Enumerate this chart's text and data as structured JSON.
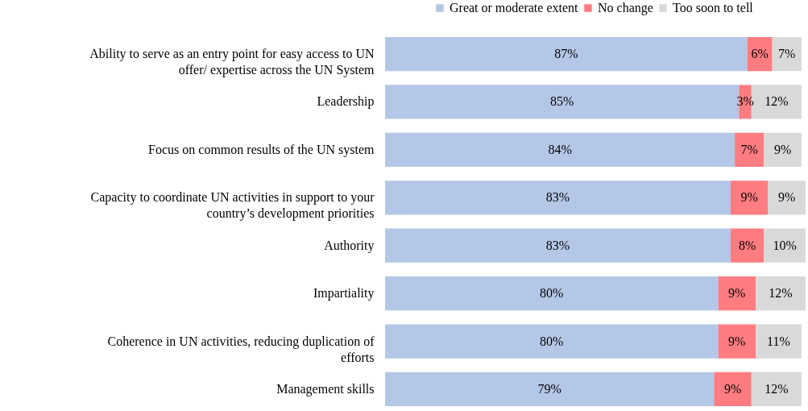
{
  "chart_data": {
    "type": "bar",
    "orientation": "horizontal",
    "stacked": true,
    "legend": "top right",
    "categories": [
      "Ability to serve as an entry point for easy access to UN offer/ expertise across the UN System",
      "Leadership",
      "Focus on common results of the UN system",
      "Capacity to coordinate UN activities  in support to your country’s development priorities",
      "Authority",
      "Impartiality",
      "Coherence in UN activities, reducing duplication of efforts",
      "Management skills"
    ],
    "series": [
      {
        "name": "Great or moderate extent",
        "color": "#b4c7e7",
        "values": [
          87,
          85,
          84,
          83,
          83,
          80,
          80,
          79
        ],
        "value_labels": [
          "87%",
          "85%",
          "84%",
          "83%",
          "83%",
          "80%",
          "80%",
          "79%"
        ]
      },
      {
        "name": "No change",
        "color": "#ff7c80",
        "values": [
          6,
          3,
          7,
          9,
          8,
          9,
          9,
          9
        ],
        "value_labels": [
          "6%",
          "3%",
          "7%",
          "9%",
          "8%",
          "9%",
          "9%",
          "9%"
        ]
      },
      {
        "name": "Too soon to tell",
        "color": "#d9d9d9",
        "values": [
          7,
          12,
          9,
          9,
          10,
          12,
          11,
          12
        ],
        "value_labels": [
          "7%",
          "12%",
          "9%",
          "9%",
          "10%",
          "12%",
          "11%",
          "12%"
        ]
      }
    ]
  }
}
